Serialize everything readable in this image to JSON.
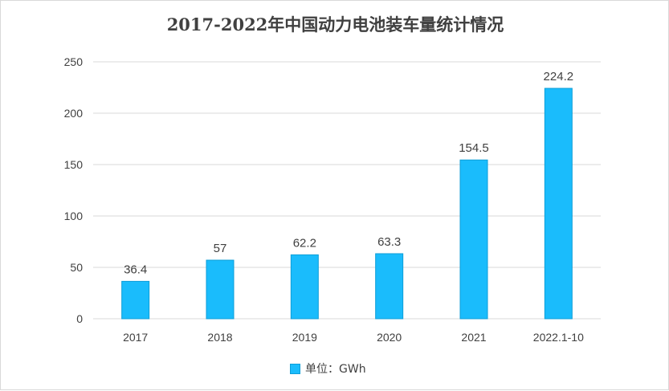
{
  "chart_data": {
    "type": "bar",
    "title": "2017-2022年中国动力电池装车量统计情况",
    "categories": [
      "2017",
      "2018",
      "2019",
      "2020",
      "2021",
      "2022.1-10"
    ],
    "series": [
      {
        "name": "单位：GWh",
        "values": [
          36.4,
          57,
          62.2,
          63.3,
          154.5,
          224.2
        ]
      }
    ],
    "data_labels": [
      "36.4",
      "57",
      "62.2",
      "63.3",
      "154.5",
      "224.2"
    ],
    "yticks": [
      "0",
      "50",
      "100",
      "150",
      "200",
      "250"
    ],
    "ylim": [
      0,
      250
    ],
    "grid": true,
    "legend_position": "bottom",
    "colors": {
      "bar": "#1abcfc",
      "bar_edge": "#0d9ed8",
      "grid": "#d9d9d9",
      "text": "#404040"
    }
  }
}
